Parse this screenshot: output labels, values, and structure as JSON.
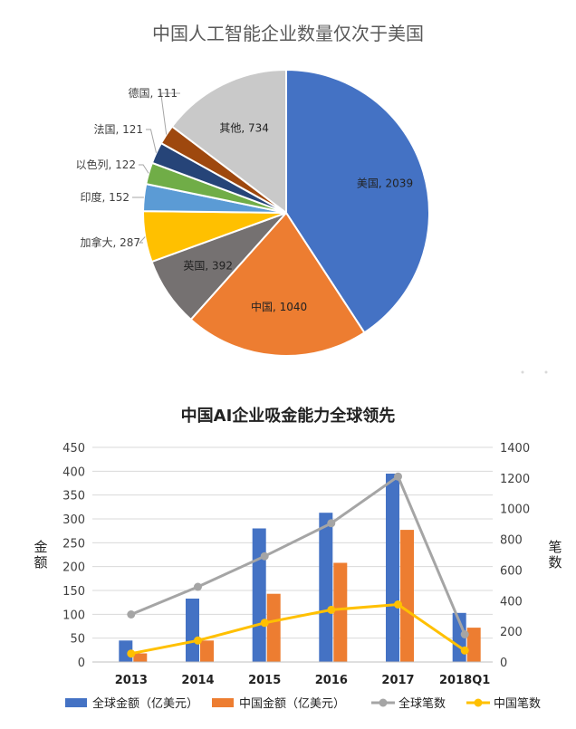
{
  "chart_data": [
    {
      "type": "pie",
      "title": "中国人工智能企业数量仅次于美国",
      "categories": [
        "美国",
        "中国",
        "英国",
        "加拿大",
        "印度",
        "以色列",
        "法国",
        "德国",
        "其他"
      ],
      "values": [
        2039,
        1040,
        392,
        287,
        152,
        122,
        121,
        111,
        734
      ],
      "data_labels": [
        "美国, 2039",
        "中国, 1040",
        "英国, 392",
        "加拿大, 287",
        "印度, 152",
        "以色列, 122",
        "法国, 121",
        "德国, 111",
        "其他, 734"
      ],
      "colors": [
        "#4472C4",
        "#ED7D31",
        "#757171",
        "#FFC000",
        "#5B9BD5",
        "#70AD47",
        "#264478",
        "#9E480E",
        "#C9C9C9"
      ],
      "legend": "none"
    },
    {
      "type": "bar",
      "title": "中国AI企业吸金能力全球领先",
      "categories": [
        "2013",
        "2014",
        "2015",
        "2016",
        "2017",
        "2018Q1"
      ],
      "ylabel": "金额",
      "y2label": "笔数",
      "ylim": [
        0,
        450
      ],
      "yticks": [
        "0",
        "50",
        "100",
        "150",
        "200",
        "250",
        "300",
        "350",
        "400",
        "450"
      ],
      "y2lim": [
        0,
        1400
      ],
      "y2ticks": [
        "0",
        "200",
        "400",
        "600",
        "800",
        "1000",
        "1200",
        "1400"
      ],
      "grid": true,
      "legend_position": "bottom",
      "series": [
        {
          "name": "全球金额（亿美元）",
          "kind": "bar",
          "axis": "left",
          "color": "#4472C4",
          "values": [
            45,
            133,
            280,
            313,
            395,
            103
          ]
        },
        {
          "name": "中国金额（亿美元）",
          "kind": "bar",
          "axis": "left",
          "color": "#ED7D31",
          "values": [
            18,
            45,
            143,
            208,
            277,
            72
          ]
        },
        {
          "name": "全球笔数",
          "kind": "line",
          "axis": "right",
          "color": "#A5A5A5",
          "values": [
            310,
            490,
            690,
            905,
            1210,
            180
          ]
        },
        {
          "name": "中国笔数",
          "kind": "line",
          "axis": "right",
          "color": "#FFC000",
          "values": [
            55,
            140,
            255,
            340,
            375,
            75
          ]
        }
      ]
    }
  ]
}
